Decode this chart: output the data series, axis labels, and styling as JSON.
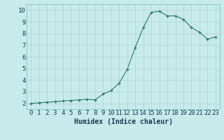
{
  "title": "",
  "xlabel": "Humidex (Indice chaleur)",
  "ylabel": "",
  "background_color": "#c8eaea",
  "grid_color": "#b0d8d8",
  "line_color": "#2a7a6a",
  "marker_color": "#2a7a6a",
  "x": [
    0,
    1,
    2,
    3,
    4,
    5,
    6,
    7,
    8,
    9,
    10,
    11,
    12,
    13,
    14,
    15,
    16,
    17,
    18,
    19,
    20,
    21,
    22,
    23
  ],
  "y": [
    2.0,
    2.05,
    2.1,
    2.15,
    2.2,
    2.25,
    2.3,
    2.35,
    2.3,
    2.8,
    3.1,
    3.75,
    4.9,
    6.8,
    8.5,
    9.8,
    9.9,
    9.5,
    9.5,
    9.2,
    8.5,
    8.1,
    7.5,
    7.7
  ],
  "ylim": [
    1.5,
    10.5
  ],
  "xlim": [
    -0.5,
    23.5
  ],
  "yticks": [
    2,
    3,
    4,
    5,
    6,
    7,
    8,
    9,
    10
  ],
  "xticks": [
    0,
    1,
    2,
    3,
    4,
    5,
    6,
    7,
    8,
    9,
    10,
    11,
    12,
    13,
    14,
    15,
    16,
    17,
    18,
    19,
    20,
    21,
    22,
    23
  ],
  "fontsize_label": 7,
  "fontsize_tick": 6.5
}
